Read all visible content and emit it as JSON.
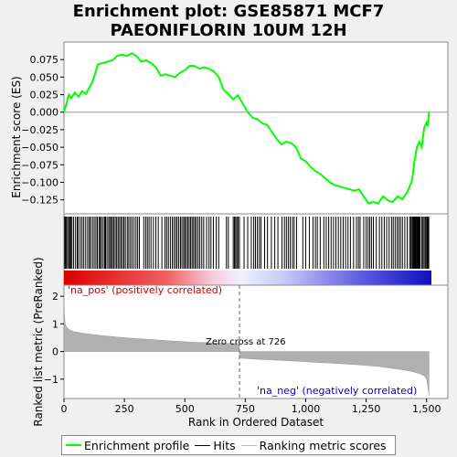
{
  "title_line1": "Enrichment plot: GSE85871 MCF7",
  "title_line2": "PAEONIFLORIN 10UM 12H",
  "chart_data": [
    {
      "type": "line",
      "ylabel": "Enrichment score (ES)",
      "ylim": [
        -0.145,
        0.1
      ],
      "yticks": [
        -0.125,
        -0.1,
        -0.075,
        -0.05,
        -0.025,
        0.0,
        0.025,
        0.05,
        0.075
      ],
      "ytick_labels": [
        "−0.125",
        "−0.100",
        "−0.075",
        "−0.050",
        "−0.025",
        "0.000",
        "0.025",
        "0.050",
        "0.075"
      ],
      "xlim": [
        0,
        1520
      ],
      "color": "#00ff00",
      "series": [
        {
          "x": [
            0,
            10,
            20,
            30,
            45,
            60,
            75,
            90,
            105,
            120,
            140,
            160,
            180,
            200,
            220,
            240,
            260,
            280,
            300,
            320,
            340,
            360,
            380,
            400,
            420,
            440,
            460,
            480,
            500,
            520,
            540,
            560,
            580,
            600,
            620,
            640,
            660,
            680,
            700,
            720,
            740,
            760,
            780,
            800,
            820,
            840,
            860,
            880,
            900,
            920,
            940,
            960,
            980,
            1000,
            1020,
            1040,
            1060,
            1080,
            1100,
            1120,
            1140,
            1160,
            1180,
            1200,
            1220,
            1240,
            1260,
            1280,
            1300,
            1320,
            1340,
            1360,
            1380,
            1400,
            1420,
            1440,
            1450,
            1460,
            1470,
            1480,
            1490,
            1500,
            1505,
            1510
          ],
          "y": [
            0.0,
            0.012,
            0.025,
            0.02,
            0.028,
            0.022,
            0.03,
            0.026,
            0.035,
            0.045,
            0.068,
            0.07,
            0.072,
            0.074,
            0.08,
            0.082,
            0.08,
            0.084,
            0.08,
            0.072,
            0.074,
            0.07,
            0.064,
            0.052,
            0.054,
            0.052,
            0.05,
            0.056,
            0.06,
            0.066,
            0.066,
            0.062,
            0.064,
            0.062,
            0.058,
            0.05,
            0.032,
            0.026,
            0.018,
            0.024,
            0.012,
            0.0,
            -0.008,
            -0.01,
            -0.016,
            -0.018,
            -0.028,
            -0.038,
            -0.046,
            -0.042,
            -0.044,
            -0.05,
            -0.066,
            -0.07,
            -0.078,
            -0.084,
            -0.088,
            -0.094,
            -0.1,
            -0.104,
            -0.106,
            -0.108,
            -0.11,
            -0.112,
            -0.11,
            -0.12,
            -0.13,
            -0.128,
            -0.13,
            -0.12,
            -0.126,
            -0.128,
            -0.12,
            -0.124,
            -0.114,
            -0.098,
            -0.07,
            -0.05,
            -0.042,
            -0.05,
            -0.022,
            -0.015,
            -0.02,
            0.0
          ]
        }
      ]
    },
    {
      "type": "scatter",
      "name": "hits",
      "xlim": [
        0,
        1520
      ],
      "hit_positions": [
        3,
        6,
        10,
        15,
        20,
        25,
        28,
        33,
        40,
        48,
        55,
        60,
        68,
        75,
        82,
        90,
        98,
        105,
        110,
        118,
        125,
        132,
        138,
        145,
        150,
        155,
        162,
        168,
        172,
        178,
        185,
        190,
        196,
        200,
        206,
        212,
        218,
        224,
        230,
        236,
        242,
        248,
        254,
        262,
        268,
        275,
        282,
        290,
        298,
        305,
        312,
        330,
        338,
        345,
        352,
        360,
        370,
        380,
        390,
        405,
        418,
        425,
        432,
        440,
        448,
        455,
        462,
        468,
        475,
        482,
        488,
        495,
        500,
        506,
        512,
        518,
        524,
        530,
        536,
        542,
        548,
        555,
        562,
        570,
        578,
        590,
        600,
        608,
        618,
        630,
        640,
        672,
        680,
        700,
        705,
        710,
        715,
        720,
        726,
        745,
        760,
        775,
        785,
        792,
        800,
        808,
        815,
        830,
        842,
        858,
        872,
        885,
        902,
        912,
        920,
        928,
        936,
        945,
        952,
        962,
        988,
        1000,
        1015,
        1030,
        1040,
        1048,
        1060,
        1075,
        1085,
        1095,
        1105,
        1115,
        1125,
        1135,
        1145,
        1155,
        1165,
        1175,
        1185,
        1198,
        1210,
        1218,
        1225,
        1240,
        1250,
        1258,
        1265,
        1272,
        1280,
        1292,
        1305,
        1315,
        1325,
        1335,
        1345,
        1355,
        1362,
        1370,
        1378,
        1385,
        1392,
        1400,
        1410,
        1420,
        1430,
        1435,
        1440,
        1443,
        1446,
        1449,
        1452,
        1455,
        1458,
        1461,
        1464,
        1467,
        1470,
        1473,
        1480,
        1485,
        1490,
        1495,
        1500,
        1503,
        1506,
        1509
      ]
    },
    {
      "type": "area",
      "ylabel": "Ranked list metric (PreRanked)",
      "xlabel": "Rank in Ordered Dataset",
      "ylim": [
        -1.7,
        2.4
      ],
      "yticks": [
        -1,
        0,
        1,
        2
      ],
      "ytick_labels": [
        "−1",
        "0",
        "1",
        "2"
      ],
      "xlim": [
        0,
        1520
      ],
      "xticks": [
        0,
        250,
        500,
        750,
        1000,
        1250,
        1500
      ],
      "xtick_labels": [
        "0",
        "250",
        "500",
        "750",
        "1,000",
        "1,250",
        "1,500"
      ],
      "series": [
        {
          "x": [
            0,
            2,
            5,
            10,
            20,
            40,
            80,
            150,
            250,
            350,
            450,
            550,
            650,
            725,
            726,
            800,
            900,
            1000,
            1100,
            1200,
            1300,
            1350,
            1400,
            1440,
            1470,
            1490,
            1500,
            1506,
            1510
          ],
          "y": [
            2.1,
            1.3,
            1.0,
            0.9,
            0.8,
            0.72,
            0.66,
            0.58,
            0.5,
            0.44,
            0.38,
            0.33,
            0.3,
            0.28,
            -0.24,
            -0.28,
            -0.32,
            -0.37,
            -0.42,
            -0.47,
            -0.54,
            -0.6,
            -0.66,
            -0.72,
            -0.8,
            -0.88,
            -1.0,
            -1.3,
            -1.6
          ]
        }
      ],
      "zero_cross": 726,
      "annotations": [
        "Zero cross at 726",
        "'na_pos' (positively correlated)",
        "'na_neg' (negatively correlated)"
      ]
    }
  ],
  "legend": {
    "items": [
      {
        "label": "Enrichment profile",
        "color": "#00ff00"
      },
      {
        "label": "Hits",
        "color": "#000000"
      },
      {
        "label": "Ranking metric scores",
        "color": "#bbbbbb"
      }
    ]
  }
}
